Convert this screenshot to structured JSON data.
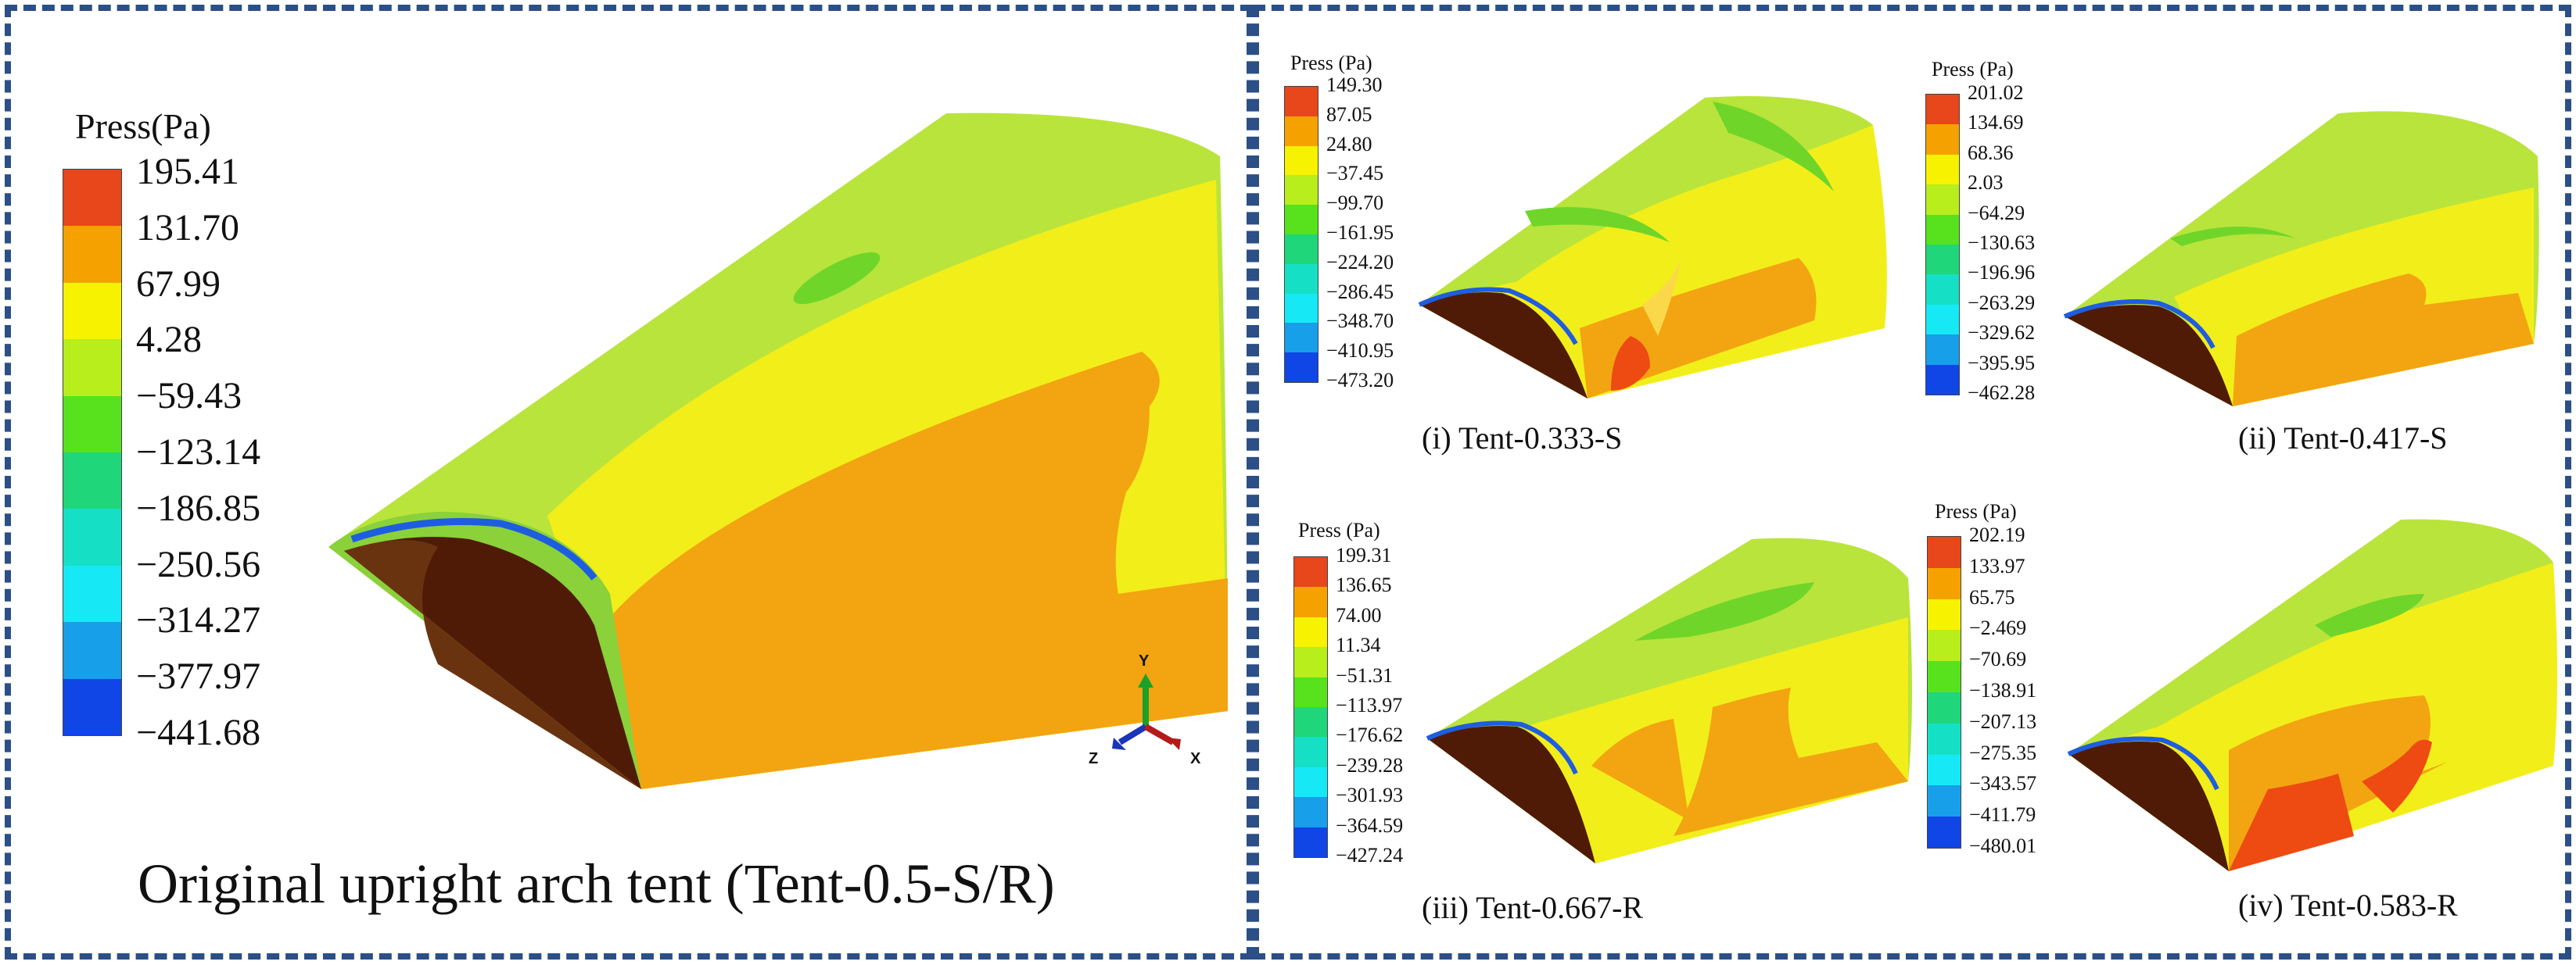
{
  "colors": {
    "frame": "#2b4f86",
    "scale": [
      "#e8461b",
      "#f5a200",
      "#f7f300",
      "#b7ee1c",
      "#57e21d",
      "#1fd67a",
      "#15e0c5",
      "#16e9f5",
      "#179fea",
      "#1045e6"
    ],
    "tent_green": "#b9e43c",
    "tent_yellow": "#f2ee1a",
    "tent_orange": "#f2a511",
    "tent_red": "#ee4b12",
    "tent_dark": "#4f1b06"
  },
  "main": {
    "legend_title": "Press(Pa)",
    "ticks": [
      "195.41",
      "131.70",
      "67.99",
      "4.28",
      "−59.43",
      "−123.14",
      "−186.85",
      "−250.56",
      "−314.27",
      "−377.97",
      "−441.68"
    ],
    "caption": "Original upright arch tent (Tent-0.5-S/R)",
    "axis_labels": {
      "y": "Y",
      "x": "X",
      "z": "Z"
    }
  },
  "panels": [
    {
      "legend_title": "Press (Pa)",
      "ticks": [
        "149.30",
        "87.05",
        "24.80",
        "−37.45",
        "−99.70",
        "−161.95",
        "−224.20",
        "−286.45",
        "−348.70",
        "−410.95",
        "−473.20"
      ],
      "caption": "(i) Tent-0.333-S"
    },
    {
      "legend_title": "Press (Pa)",
      "ticks": [
        "201.02",
        "134.69",
        "68.36",
        "2.03",
        "−64.29",
        "−130.63",
        "−196.96",
        "−263.29",
        "−329.62",
        "−395.95",
        "−462.28"
      ],
      "caption": "(ii) Tent-0.417-S"
    },
    {
      "legend_title": "Press (Pa)",
      "ticks": [
        "199.31",
        "136.65",
        "74.00",
        "11.34",
        "−51.31",
        "−113.97",
        "−176.62",
        "−239.28",
        "−301.93",
        "−364.59",
        "−427.24"
      ],
      "caption": "(iii) Tent-0.667-R"
    },
    {
      "legend_title": "Press (Pa)",
      "ticks": [
        "202.19",
        "133.97",
        "65.75",
        "−2.469",
        "−70.69",
        "−138.91",
        "−207.13",
        "−275.35",
        "−343.57",
        "−411.79",
        "−480.01"
      ],
      "caption": "(iv) Tent-0.583-R"
    }
  ]
}
